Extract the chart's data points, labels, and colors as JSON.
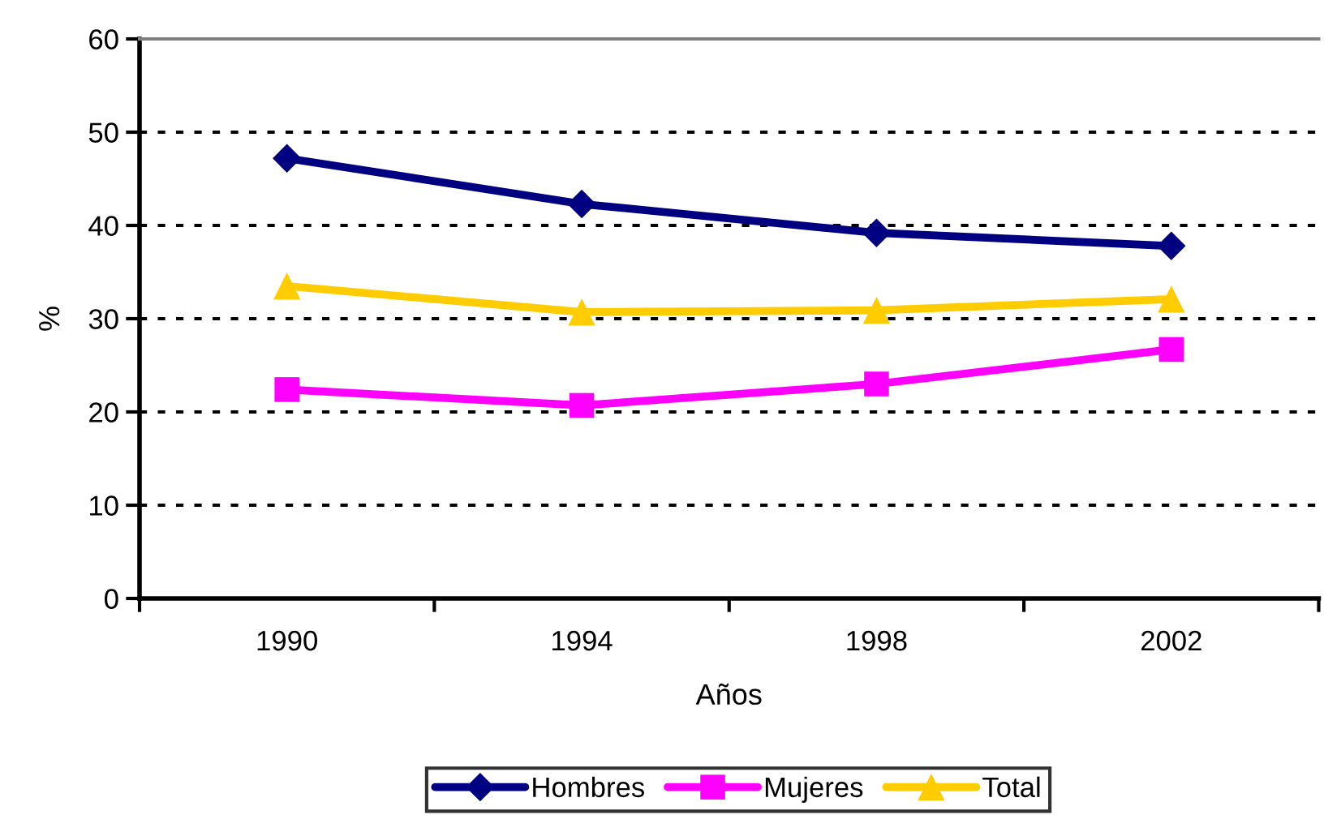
{
  "chart_data": {
    "type": "line",
    "xlabel": "Años",
    "ylabel": "%",
    "categories": [
      "1990",
      "1994",
      "1998",
      "2002"
    ],
    "series": [
      {
        "name": "Hombres",
        "color": "#000080",
        "marker": "diamond",
        "values": [
          47.2,
          42.3,
          39.2,
          37.8
        ]
      },
      {
        "name": "Mujeres",
        "color": "#ff00ff",
        "marker": "square",
        "values": [
          22.4,
          20.7,
          23.0,
          26.7
        ]
      },
      {
        "name": "Total",
        "color": "#ffcc00",
        "marker": "triangle",
        "values": [
          33.5,
          30.7,
          30.9,
          32.1
        ]
      }
    ],
    "ylim": [
      0,
      60
    ],
    "yticks": [
      0,
      10,
      20,
      30,
      40,
      50,
      60
    ],
    "grid": "y",
    "line_style": "solid",
    "legend": "bottom"
  }
}
